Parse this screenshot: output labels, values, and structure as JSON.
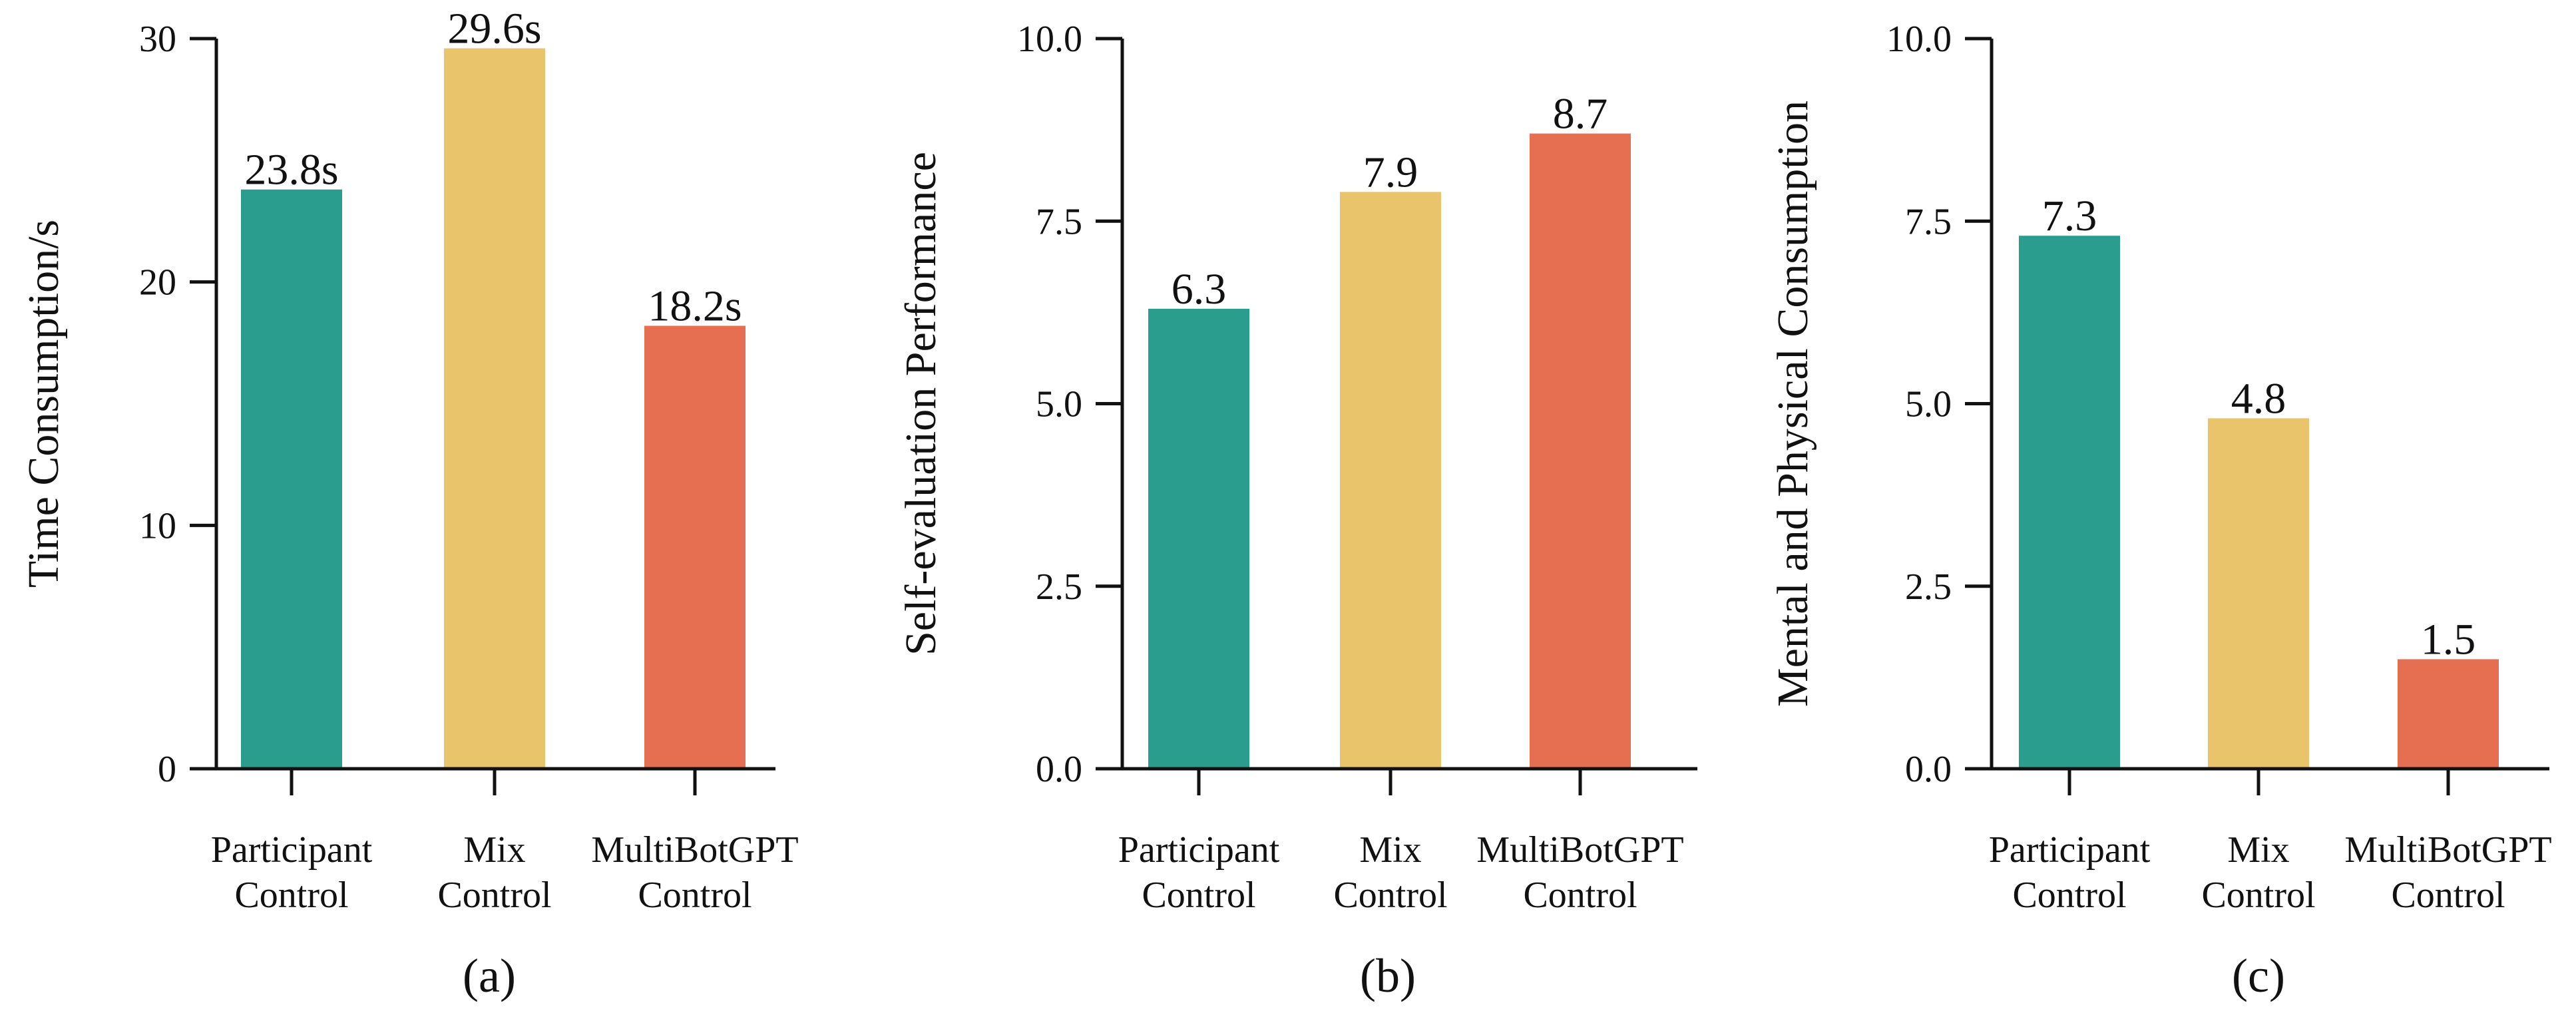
{
  "colors": {
    "participant": "#2a9d8e",
    "mix": "#e9c46b",
    "multibot": "#e76f51",
    "axis": "#111111"
  },
  "chart_data": [
    {
      "type": "bar",
      "panel": "(a)",
      "ylabel": "Time Consumption/s",
      "categories": [
        [
          "Participant",
          "Control"
        ],
        [
          "Mix",
          "Control"
        ],
        [
          "MultiBotGPT",
          "Control"
        ]
      ],
      "values": [
        23.8,
        29.6,
        18.2
      ],
      "value_labels": [
        "23.8s",
        "29.6s",
        "18.2s"
      ],
      "ylim": [
        0,
        30
      ],
      "yticks": [
        "0",
        "10",
        "20",
        "30"
      ],
      "ytick_values": [
        0,
        10,
        20,
        30
      ],
      "grid": false
    },
    {
      "type": "bar",
      "panel": "(b)",
      "ylabel": "Self-evaluation Performance",
      "categories": [
        [
          "Participant",
          "Control"
        ],
        [
          "Mix",
          "Control"
        ],
        [
          "MultiBotGPT",
          "Control"
        ]
      ],
      "values": [
        6.3,
        7.9,
        8.7
      ],
      "value_labels": [
        "6.3",
        "7.9",
        "8.7"
      ],
      "ylim": [
        0,
        10
      ],
      "yticks": [
        "0.0",
        "2.5",
        "5.0",
        "7.5",
        "10.0"
      ],
      "ytick_values": [
        0,
        2.5,
        5,
        7.5,
        10
      ],
      "grid": false
    },
    {
      "type": "bar",
      "panel": "(c)",
      "ylabel": "Mental and Physical Consumption",
      "categories": [
        [
          "Participant",
          "Control"
        ],
        [
          "Mix",
          "Control"
        ],
        [
          "MultiBotGPT",
          "Control"
        ]
      ],
      "values": [
        7.3,
        4.8,
        1.5
      ],
      "value_labels": [
        "7.3",
        "4.8",
        "1.5"
      ],
      "ylim": [
        0,
        10
      ],
      "yticks": [
        "0.0",
        "2.5",
        "5.0",
        "7.5",
        "10.0"
      ],
      "ytick_values": [
        0,
        2.5,
        5,
        7.5,
        10
      ],
      "grid": false
    }
  ]
}
